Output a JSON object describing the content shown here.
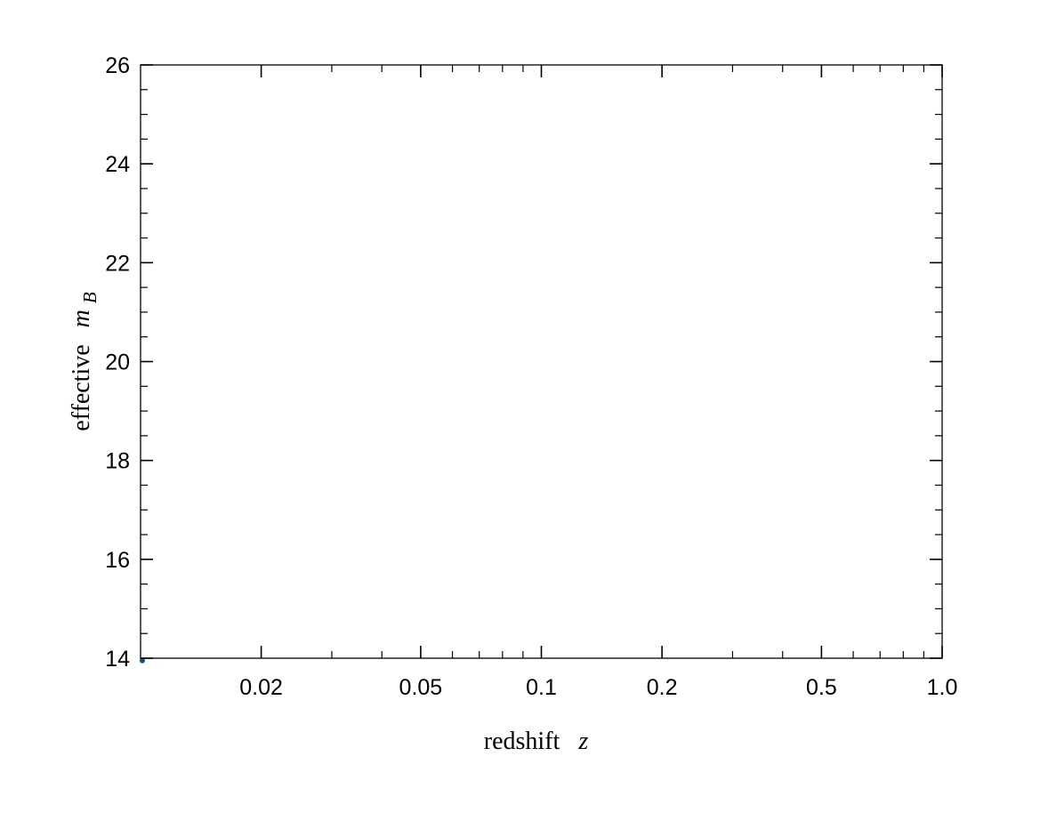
{
  "chart_data": {
    "type": "scatter",
    "title": "",
    "xlabel": "redshift",
    "xlabel_symbol": "z",
    "ylabel": "effective",
    "ylabel_symbol": "m",
    "ylabel_subscript": "B",
    "xscale": "log",
    "xlim": [
      0.01,
      1.0
    ],
    "ylim": [
      14,
      26
    ],
    "x_ticks": [
      0.02,
      0.05,
      0.1,
      0.2,
      0.5,
      1.0
    ],
    "x_tick_labels": [
      "0.02",
      "0.05",
      "0.1",
      "0.2",
      "0.5",
      "1.0"
    ],
    "x_minor_ticks": [
      0.03,
      0.04,
      0.06,
      0.07,
      0.08,
      0.09,
      0.3,
      0.4,
      0.6,
      0.7,
      0.8,
      0.9
    ],
    "y_ticks": [
      14,
      16,
      18,
      20,
      22,
      24,
      26
    ],
    "y_tick_labels": [
      "14",
      "16",
      "18",
      "20",
      "22",
      "24",
      "26"
    ],
    "y_minor_step": 0.5,
    "grid": false,
    "legend": "none",
    "marker_color": "#1f4e79",
    "axis_color": "#000000",
    "series": [
      {
        "points": [
          {
            "x": 0.0101,
            "y": 13.95
          }
        ]
      }
    ]
  }
}
